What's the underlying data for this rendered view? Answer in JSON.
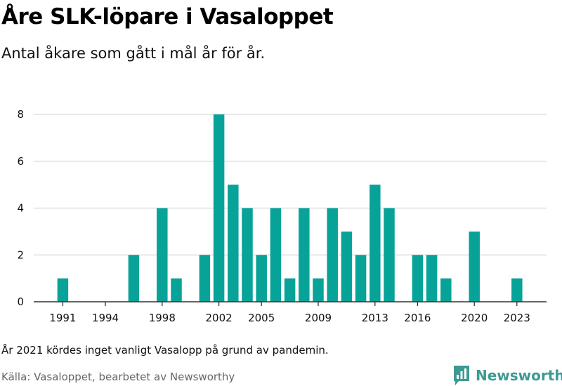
{
  "title": "Åre SLK-löpare i Vasaloppet",
  "subtitle": "Antal åkare som gått i mål år för år.",
  "note": "År 2021 kördes inget vanligt Vasalopp på grund av pandemin.",
  "source": "Källa: Vasaloppet, bearbetet av Newsworthy",
  "logo": {
    "text": "Newsworthy",
    "icon": "newsworthy-logo-icon"
  },
  "colors": {
    "bar": "#08a398",
    "grid": "#d9d9d9",
    "brand": "#3d9a92"
  },
  "chart_data": {
    "type": "bar",
    "x": [
      1990,
      1991,
      1992,
      1993,
      1994,
      1995,
      1996,
      1997,
      1998,
      1999,
      2000,
      2001,
      2002,
      2003,
      2004,
      2005,
      2006,
      2007,
      2008,
      2009,
      2010,
      2011,
      2012,
      2013,
      2014,
      2015,
      2016,
      2017,
      2018,
      2019,
      2020,
      2021,
      2022,
      2023
    ],
    "values": [
      0,
      1,
      0,
      0,
      0,
      0,
      2,
      0,
      4,
      1,
      0,
      2,
      8,
      5,
      4,
      2,
      4,
      1,
      4,
      1,
      4,
      3,
      2,
      5,
      4,
      0,
      2,
      2,
      1,
      0,
      3,
      0,
      0,
      1
    ],
    "x_ticks": [
      "1991",
      "1994",
      "1998",
      "2002",
      "2005",
      "2009",
      "2013",
      "2016",
      "2020",
      "2023"
    ],
    "y_ticks": [
      "0",
      "2",
      "4",
      "6",
      "8"
    ],
    "ylim": [
      0,
      8
    ],
    "grid": true
  }
}
